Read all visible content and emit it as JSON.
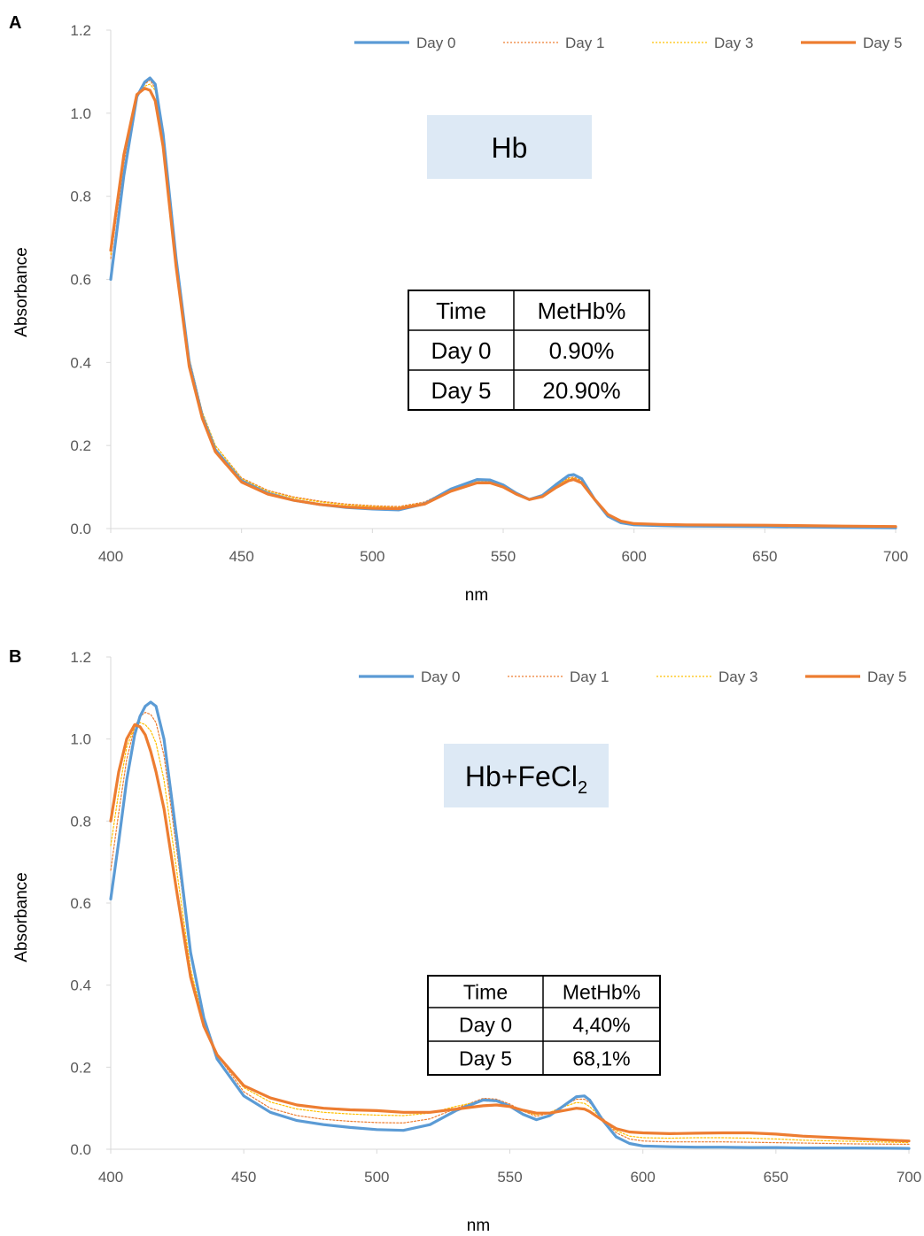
{
  "colors": {
    "day0": "#5B9BD5",
    "day1": "#ED7D31",
    "day3": "#FFC000",
    "day5": "#ED7D31"
  },
  "chart_data": [
    {
      "panel": "A",
      "type": "line",
      "xlabel": "nm",
      "ylabel": "Absorbance",
      "xlim": [
        400,
        700
      ],
      "ylim": [
        0,
        1.2
      ],
      "x_ticks": [
        "400",
        "450",
        "500",
        "550",
        "600",
        "650",
        "700"
      ],
      "y_ticks": [
        "0.0",
        "0.2",
        "0.4",
        "0.6",
        "0.8",
        "1.0",
        "1.2"
      ],
      "grid": false,
      "legend": "top-right",
      "annotation_label": "Hb",
      "annotation_sub": "",
      "table": {
        "headers": [
          "Time",
          "MetHb%"
        ],
        "rows": [
          [
            "Day 0",
            "0.90%"
          ],
          [
            "Day 5",
            "20.90%"
          ]
        ]
      },
      "x": [
        400,
        405,
        410,
        413,
        415,
        417,
        420,
        425,
        430,
        435,
        440,
        450,
        460,
        470,
        480,
        490,
        500,
        510,
        520,
        530,
        540,
        545,
        550,
        555,
        560,
        565,
        570,
        575,
        577,
        580,
        585,
        590,
        595,
        600,
        610,
        620,
        650,
        680,
        700
      ],
      "series": [
        {
          "name": "Day 0",
          "style": "solid",
          "values": [
            0.6,
            0.85,
            1.04,
            1.075,
            1.085,
            1.07,
            0.95,
            0.65,
            0.4,
            0.27,
            0.19,
            0.115,
            0.085,
            0.068,
            0.058,
            0.051,
            0.047,
            0.045,
            0.06,
            0.095,
            0.118,
            0.117,
            0.105,
            0.085,
            0.07,
            0.08,
            0.105,
            0.128,
            0.13,
            0.12,
            0.07,
            0.03,
            0.014,
            0.009,
            0.007,
            0.006,
            0.005,
            0.003,
            0.002
          ]
        },
        {
          "name": "Day 1",
          "style": "dotted",
          "values": [
            0.65,
            0.88,
            1.04,
            1.07,
            1.08,
            1.06,
            0.96,
            0.66,
            0.41,
            0.28,
            0.2,
            0.122,
            0.092,
            0.076,
            0.066,
            0.059,
            0.055,
            0.053,
            0.064,
            0.095,
            0.116,
            0.115,
            0.104,
            0.086,
            0.072,
            0.08,
            0.102,
            0.122,
            0.124,
            0.115,
            0.072,
            0.034,
            0.018,
            0.012,
            0.01,
            0.008,
            0.007,
            0.005,
            0.004
          ]
        },
        {
          "name": "Day 3",
          "style": "dotted",
          "values": [
            0.66,
            0.89,
            1.04,
            1.065,
            1.07,
            1.055,
            0.95,
            0.66,
            0.41,
            0.28,
            0.2,
            0.12,
            0.09,
            0.074,
            0.064,
            0.057,
            0.053,
            0.051,
            0.062,
            0.094,
            0.115,
            0.114,
            0.103,
            0.085,
            0.071,
            0.079,
            0.101,
            0.12,
            0.122,
            0.113,
            0.071,
            0.033,
            0.017,
            0.011,
            0.009,
            0.008,
            0.006,
            0.005,
            0.004
          ]
        },
        {
          "name": "Day 5",
          "style": "solid",
          "values": [
            0.67,
            0.9,
            1.045,
            1.06,
            1.055,
            1.03,
            0.92,
            0.63,
            0.39,
            0.265,
            0.185,
            0.112,
            0.083,
            0.068,
            0.058,
            0.052,
            0.049,
            0.048,
            0.059,
            0.09,
            0.11,
            0.11,
            0.1,
            0.083,
            0.07,
            0.077,
            0.098,
            0.115,
            0.118,
            0.11,
            0.07,
            0.034,
            0.018,
            0.012,
            0.01,
            0.009,
            0.008,
            0.006,
            0.005
          ]
        }
      ]
    },
    {
      "panel": "B",
      "type": "line",
      "xlabel": "nm",
      "ylabel": "Absorbance",
      "xlim": [
        400,
        700
      ],
      "ylim": [
        0,
        1.2
      ],
      "x_ticks": [
        "400",
        "450",
        "500",
        "550",
        "600",
        "650",
        "700"
      ],
      "y_ticks": [
        "0.0",
        "0.2",
        "0.4",
        "0.6",
        "0.8",
        "1.0",
        "1.2"
      ],
      "grid": false,
      "legend": "top-right",
      "annotation_label": "Hb+FeCl",
      "annotation_sub": "2",
      "table": {
        "headers": [
          "Time",
          "MetHb%"
        ],
        "rows": [
          [
            "Day 0",
            "4,40%"
          ],
          [
            "Day 5",
            "68,1%"
          ]
        ]
      },
      "x": [
        400,
        403,
        406,
        409,
        411,
        413,
        415,
        417,
        420,
        425,
        430,
        435,
        440,
        450,
        460,
        470,
        480,
        490,
        500,
        510,
        520,
        530,
        540,
        545,
        550,
        555,
        560,
        565,
        570,
        575,
        578,
        580,
        585,
        590,
        595,
        600,
        610,
        620,
        630,
        640,
        650,
        660,
        680,
        700
      ],
      "series": [
        {
          "name": "Day 0",
          "style": "solid",
          "values": [
            0.61,
            0.75,
            0.9,
            1.01,
            1.055,
            1.08,
            1.09,
            1.08,
            1.0,
            0.75,
            0.48,
            0.32,
            0.22,
            0.13,
            0.09,
            0.07,
            0.06,
            0.053,
            0.048,
            0.046,
            0.06,
            0.095,
            0.12,
            0.118,
            0.105,
            0.085,
            0.072,
            0.082,
            0.105,
            0.128,
            0.13,
            0.12,
            0.07,
            0.03,
            0.014,
            0.008,
            0.006,
            0.005,
            0.005,
            0.004,
            0.004,
            0.003,
            0.003,
            0.002
          ]
        },
        {
          "name": "Day 1",
          "style": "dotted",
          "values": [
            0.68,
            0.82,
            0.95,
            1.03,
            1.055,
            1.065,
            1.06,
            1.04,
            0.96,
            0.72,
            0.47,
            0.32,
            0.23,
            0.14,
            0.1,
            0.082,
            0.073,
            0.068,
            0.065,
            0.064,
            0.074,
            0.1,
            0.124,
            0.122,
            0.11,
            0.093,
            0.08,
            0.088,
            0.106,
            0.122,
            0.122,
            0.114,
            0.075,
            0.04,
            0.025,
            0.02,
            0.018,
            0.018,
            0.018,
            0.017,
            0.016,
            0.015,
            0.013,
            0.012
          ]
        },
        {
          "name": "Day 3",
          "style": "dotted",
          "values": [
            0.74,
            0.87,
            0.98,
            1.03,
            1.04,
            1.035,
            1.02,
            0.99,
            0.9,
            0.67,
            0.44,
            0.31,
            0.23,
            0.15,
            0.115,
            0.098,
            0.09,
            0.086,
            0.083,
            0.082,
            0.088,
            0.105,
            0.118,
            0.116,
            0.106,
            0.093,
            0.084,
            0.09,
            0.103,
            0.114,
            0.112,
            0.104,
            0.072,
            0.045,
            0.032,
            0.028,
            0.027,
            0.028,
            0.028,
            0.027,
            0.025,
            0.022,
            0.019,
            0.016
          ]
        },
        {
          "name": "Day 5",
          "style": "solid",
          "values": [
            0.8,
            0.92,
            1.0,
            1.035,
            1.03,
            1.01,
            0.97,
            0.92,
            0.83,
            0.62,
            0.42,
            0.3,
            0.23,
            0.155,
            0.125,
            0.108,
            0.1,
            0.096,
            0.094,
            0.09,
            0.09,
            0.098,
            0.106,
            0.108,
            0.104,
            0.095,
            0.088,
            0.088,
            0.094,
            0.1,
            0.098,
            0.092,
            0.07,
            0.05,
            0.042,
            0.04,
            0.038,
            0.039,
            0.04,
            0.04,
            0.037,
            0.032,
            0.026,
            0.02
          ]
        }
      ]
    }
  ]
}
